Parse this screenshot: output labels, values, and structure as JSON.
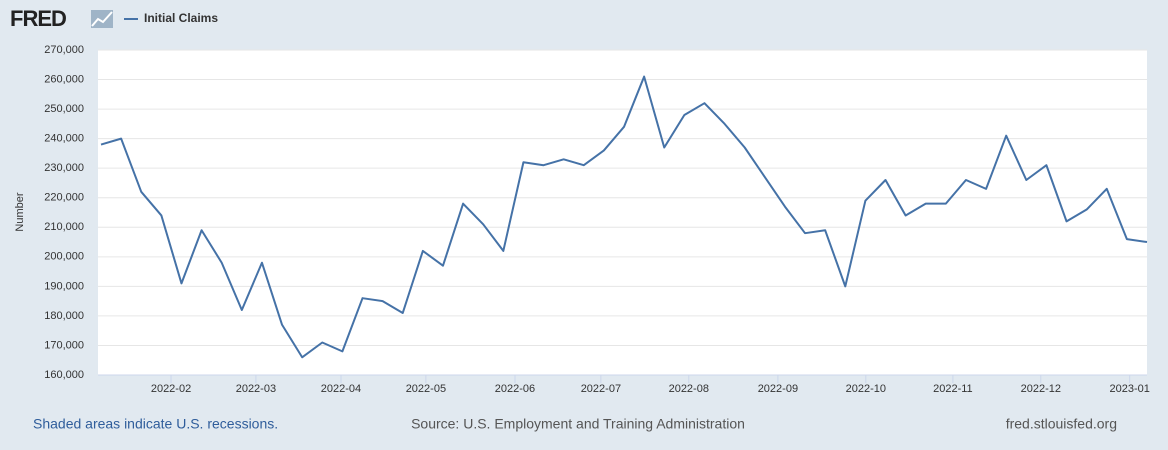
{
  "header": {
    "logo": "FRED"
  },
  "chart_data": {
    "type": "line",
    "ylabel": "Number",
    "categories": [
      null,
      null,
      null,
      null,
      null,
      null,
      null,
      null,
      null,
      null,
      null,
      null,
      null,
      null,
      null,
      null,
      null,
      null,
      null,
      null,
      null,
      null,
      null,
      null,
      null,
      null,
      null,
      null,
      null,
      null,
      null,
      null,
      null,
      null,
      null,
      null,
      null,
      null,
      null,
      null,
      null,
      null,
      null,
      null,
      null,
      null,
      null,
      null,
      null,
      null,
      null,
      null,
      null
    ],
    "series": [
      {
        "name": "Initial Claims",
        "color": "#4572a7",
        "values": [
          238000,
          240000,
          222000,
          214000,
          191000,
          209000,
          198000,
          182000,
          198000,
          177000,
          166000,
          171000,
          168000,
          186000,
          185000,
          181000,
          202000,
          197000,
          218000,
          211000,
          202000,
          232000,
          231000,
          233000,
          231000,
          236000,
          244000,
          261000,
          237000,
          248000,
          252000,
          245000,
          237000,
          227000,
          217000,
          208000,
          209000,
          190000,
          219000,
          226000,
          214000,
          218000,
          218000,
          226000,
          223000,
          241000,
          226000,
          231000,
          212000,
          216000,
          223000,
          206000,
          205000
        ]
      }
    ],
    "xlim": [
      -0.15,
      52
    ],
    "xticks": [
      {
        "value": 3.48,
        "label": "2022-02"
      },
      {
        "value": 7.7,
        "label": "2022-03"
      },
      {
        "value": 11.93,
        "label": "2022-04"
      },
      {
        "value": 16.15,
        "label": "2022-05"
      },
      {
        "value": 20.58,
        "label": "2022-06"
      },
      {
        "value": 24.85,
        "label": "2022-07"
      },
      {
        "value": 29.22,
        "label": "2022-08"
      },
      {
        "value": 33.65,
        "label": "2022-09"
      },
      {
        "value": 38.02,
        "label": "2022-10"
      },
      {
        "value": 42.35,
        "label": "2022-11"
      },
      {
        "value": 46.72,
        "label": "2022-12"
      },
      {
        "value": 51.14,
        "label": "2023-01"
      }
    ],
    "ylim": [
      160000,
      270000
    ],
    "yticks": [
      {
        "value": 160000,
        "label": "160,000"
      },
      {
        "value": 170000,
        "label": "170,000"
      },
      {
        "value": 180000,
        "label": "180,000"
      },
      {
        "value": 190000,
        "label": "190,000"
      },
      {
        "value": 200000,
        "label": "200,000"
      },
      {
        "value": 210000,
        "label": "210,000"
      },
      {
        "value": 220000,
        "label": "220,000"
      },
      {
        "value": 230000,
        "label": "230,000"
      },
      {
        "value": 240000,
        "label": "240,000"
      },
      {
        "value": 250000,
        "label": "250,000"
      },
      {
        "value": 260000,
        "label": "260,000"
      },
      {
        "value": 270000,
        "label": "270,000"
      }
    ],
    "grid": true
  },
  "footer": {
    "left": "Shaded areas indicate U.S. recessions.",
    "center": "Source: U.S. Employment and Training Administration",
    "right": "fred.stlouisfed.org"
  }
}
